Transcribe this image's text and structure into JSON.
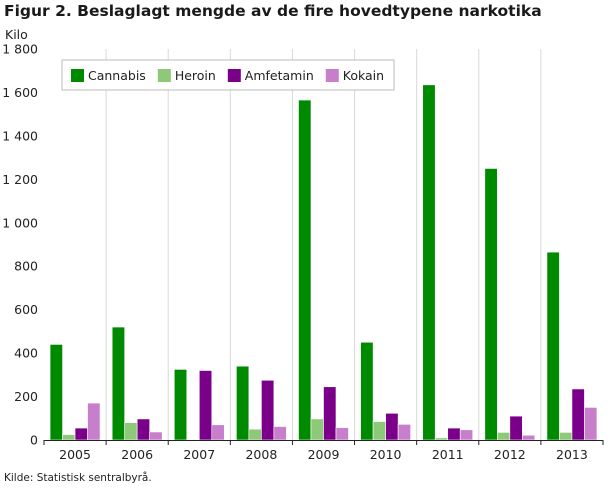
{
  "title": "Figur 2. Beslaglagt mengde av de fire hovedtypene narkotika",
  "source": "Kilde: Statistisk sentralbyrå.",
  "chart_data": {
    "type": "bar",
    "ylabel": "Kilo",
    "xlabel": "",
    "ylim": [
      0,
      1800
    ],
    "yticks": [
      0,
      200,
      400,
      600,
      800,
      1000,
      1200,
      1400,
      1600,
      1800
    ],
    "ytick_labels": [
      "0",
      "200",
      "400",
      "600",
      "800",
      "1 000",
      "1 200",
      "1 400",
      "1 600",
      "1 800"
    ],
    "grid": "vertical separators between categories",
    "legend_position": "top-left",
    "categories": [
      "2005",
      "2006",
      "2007",
      "2008",
      "2009",
      "2010",
      "2011",
      "2012",
      "2013"
    ],
    "series": [
      {
        "name": "Cannabis",
        "color": "#008a00",
        "values": [
          440,
          520,
          325,
          340,
          1565,
          450,
          1635,
          1250,
          865
        ]
      },
      {
        "name": "Heroin",
        "color": "#8ec97a",
        "values": [
          25,
          80,
          3,
          50,
          97,
          85,
          10,
          35,
          35
        ]
      },
      {
        "name": "Amfetamin",
        "color": "#7a008a",
        "values": [
          55,
          97,
          320,
          275,
          245,
          123,
          55,
          110,
          235
        ]
      },
      {
        "name": "Kokain",
        "color": "#c77fcc",
        "values": [
          170,
          37,
          70,
          62,
          57,
          72,
          47,
          22,
          150
        ]
      }
    ]
  }
}
